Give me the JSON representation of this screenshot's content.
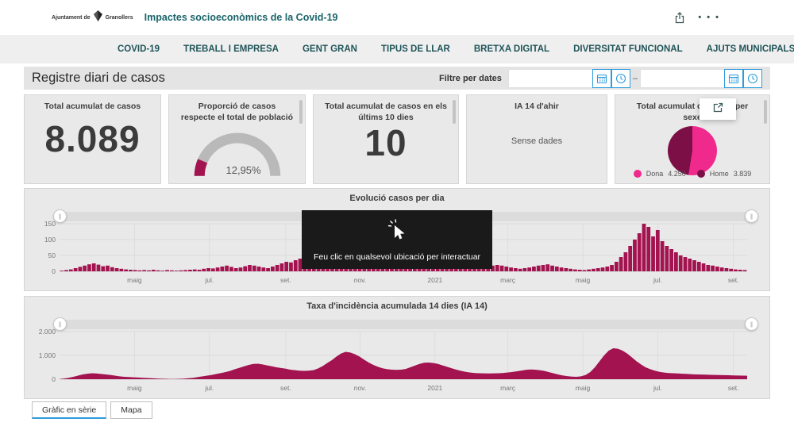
{
  "header": {
    "logo_prefix": "Ajuntament de",
    "logo_suffix": "Granollers",
    "title": "Impactes socioeconòmics de la Covid-19"
  },
  "nav": {
    "items": [
      {
        "label": "COVID-19"
      },
      {
        "label": "TREBALL I EMPRESA"
      },
      {
        "label": "GENT GRAN"
      },
      {
        "label": "TIPUS DE LLAR"
      },
      {
        "label": "BRETXA DIGITAL"
      },
      {
        "label": "DIVERSITAT FUNCIONAL"
      },
      {
        "label": "AJUTS MUNICIPALS"
      }
    ]
  },
  "toolbar": {
    "page_title": "Registre diari de casos",
    "filter_label": "Filtre per dates",
    "range_separator": "–",
    "date_from": "",
    "date_to": ""
  },
  "cards": {
    "total": {
      "title": "Total acumulat de casos",
      "value": "8.089"
    },
    "proportion": {
      "title": "Proporció de casos respecte el total de població",
      "value_label": "12,95%"
    },
    "last10": {
      "title": "Total acumulat de casos en els últims 10 dies",
      "value": "10"
    },
    "ia14": {
      "title": "IA 14 d'ahir",
      "empty": "Sense dades"
    },
    "sex": {
      "title": "Total acumulat de casos per sexe",
      "legend": [
        {
          "label": "Dona",
          "value": "4.250"
        },
        {
          "label": "Home",
          "value": "3.839"
        }
      ]
    }
  },
  "overlay": {
    "message": "Feu clic en qualsevol ubicació per interactuar"
  },
  "tabs": [
    {
      "label": "Gràfic en sèrie",
      "active": true
    },
    {
      "label": "Mapa",
      "active": false
    }
  ],
  "colors": {
    "crimson": "#A3134F",
    "pink": "#F02A8D",
    "dark_maroon": "#7C0F46",
    "gauge_track": "#B9B9B9",
    "accent_blue": "#2D9CDB",
    "teal": "#19646A"
  },
  "chart_data": [
    {
      "type": "bar",
      "title": "Evolució casos per dia",
      "ylabel": "",
      "xlabel": "",
      "ylim": [
        0,
        150
      ],
      "yticks": [
        {
          "v": 0,
          "label": "0"
        },
        {
          "v": 50,
          "label": "50"
        },
        {
          "v": 100,
          "label": "100"
        },
        {
          "v": 150,
          "label": "150"
        }
      ],
      "xticks": [
        {
          "pos": 0.109,
          "label": "maig"
        },
        {
          "pos": 0.218,
          "label": "jul."
        },
        {
          "pos": 0.329,
          "label": "set."
        },
        {
          "pos": 0.437,
          "label": "nov."
        },
        {
          "pos": 0.546,
          "label": "2021"
        },
        {
          "pos": 0.652,
          "label": "març"
        },
        {
          "pos": 0.761,
          "label": "maig"
        },
        {
          "pos": 0.87,
          "label": "jul."
        },
        {
          "pos": 0.98,
          "label": "set."
        }
      ],
      "values": [
        2,
        4,
        6,
        10,
        14,
        18,
        22,
        25,
        21,
        16,
        18,
        13,
        10,
        8,
        6,
        5,
        4,
        3,
        4,
        3,
        5,
        3,
        2,
        4,
        3,
        2,
        3,
        4,
        5,
        6,
        5,
        8,
        10,
        9,
        12,
        15,
        18,
        14,
        10,
        12,
        16,
        20,
        18,
        15,
        12,
        10,
        15,
        20,
        25,
        30,
        28,
        35,
        40,
        38,
        30,
        25,
        28,
        35,
        45,
        50,
        42,
        55,
        65,
        75,
        70,
        60,
        50,
        45,
        40,
        35,
        30,
        28,
        25,
        30,
        35,
        40,
        50,
        65,
        80,
        90,
        85,
        70,
        55,
        45,
        35,
        30,
        25,
        20,
        18,
        15,
        12,
        10,
        12,
        15,
        18,
        20,
        18,
        15,
        12,
        10,
        8,
        10,
        12,
        15,
        18,
        20,
        22,
        18,
        15,
        12,
        10,
        8,
        6,
        5,
        4,
        6,
        8,
        10,
        12,
        15,
        20,
        30,
        45,
        60,
        80,
        100,
        120,
        150,
        140,
        110,
        130,
        95,
        80,
        70,
        60,
        50,
        45,
        40,
        35,
        30,
        25,
        20,
        18,
        15,
        12,
        10,
        8,
        6,
        5,
        4
      ]
    },
    {
      "type": "area",
      "title": "Taxa d'incidència acumulada 14 dies (IA 14)",
      "ylabel": "",
      "xlabel": "",
      "ylim": [
        0,
        2000
      ],
      "yticks": [
        {
          "v": 0,
          "label": "0"
        },
        {
          "v": 1000,
          "label": "1.000"
        },
        {
          "v": 2000,
          "label": "2.000"
        }
      ],
      "xticks": [
        {
          "pos": 0.109,
          "label": "maig"
        },
        {
          "pos": 0.218,
          "label": "jul."
        },
        {
          "pos": 0.329,
          "label": "set."
        },
        {
          "pos": 0.437,
          "label": "nov."
        },
        {
          "pos": 0.546,
          "label": "2021"
        },
        {
          "pos": 0.652,
          "label": "març"
        },
        {
          "pos": 0.761,
          "label": "maig"
        },
        {
          "pos": 0.87,
          "label": "jul."
        },
        {
          "pos": 0.98,
          "label": "set."
        }
      ],
      "values": [
        10,
        30,
        60,
        100,
        150,
        200,
        230,
        250,
        240,
        220,
        200,
        180,
        150,
        120,
        100,
        90,
        80,
        70,
        60,
        50,
        40,
        30,
        20,
        15,
        10,
        10,
        15,
        25,
        40,
        60,
        90,
        120,
        150,
        180,
        220,
        260,
        300,
        350,
        420,
        480,
        540,
        600,
        640,
        650,
        620,
        580,
        540,
        500,
        470,
        440,
        400,
        380,
        360,
        350,
        360,
        380,
        450,
        550,
        680,
        800,
        950,
        1080,
        1150,
        1120,
        1050,
        950,
        820,
        700,
        600,
        520,
        460,
        420,
        400,
        390,
        400,
        430,
        500,
        570,
        640,
        690,
        700,
        680,
        640,
        580,
        520,
        460,
        400,
        350,
        310,
        280,
        260,
        250,
        245,
        240,
        245,
        250,
        260,
        280,
        300,
        330,
        360,
        390,
        410,
        400,
        380,
        350,
        300,
        250,
        200,
        160,
        130,
        110,
        100,
        120,
        180,
        300,
        500,
        750,
        1000,
        1200,
        1300,
        1280,
        1200,
        1080,
        920,
        760,
        620,
        500,
        420,
        360,
        310,
        280,
        260,
        250,
        240,
        230,
        220,
        210,
        200,
        195,
        190,
        185,
        180,
        175,
        170,
        165,
        160,
        155,
        150,
        145
      ]
    },
    {
      "type": "gauge",
      "title": "Proporció de casos respecte el total de població",
      "value": 12.95,
      "min": 0,
      "max": 100,
      "label": "12,95%"
    },
    {
      "type": "pie",
      "title": "Total acumulat de casos per sexe",
      "slices": [
        {
          "label": "Dona",
          "value": 4250,
          "color": "#F02A8D"
        },
        {
          "label": "Home",
          "value": 3839,
          "color": "#7C0F46"
        }
      ]
    }
  ]
}
